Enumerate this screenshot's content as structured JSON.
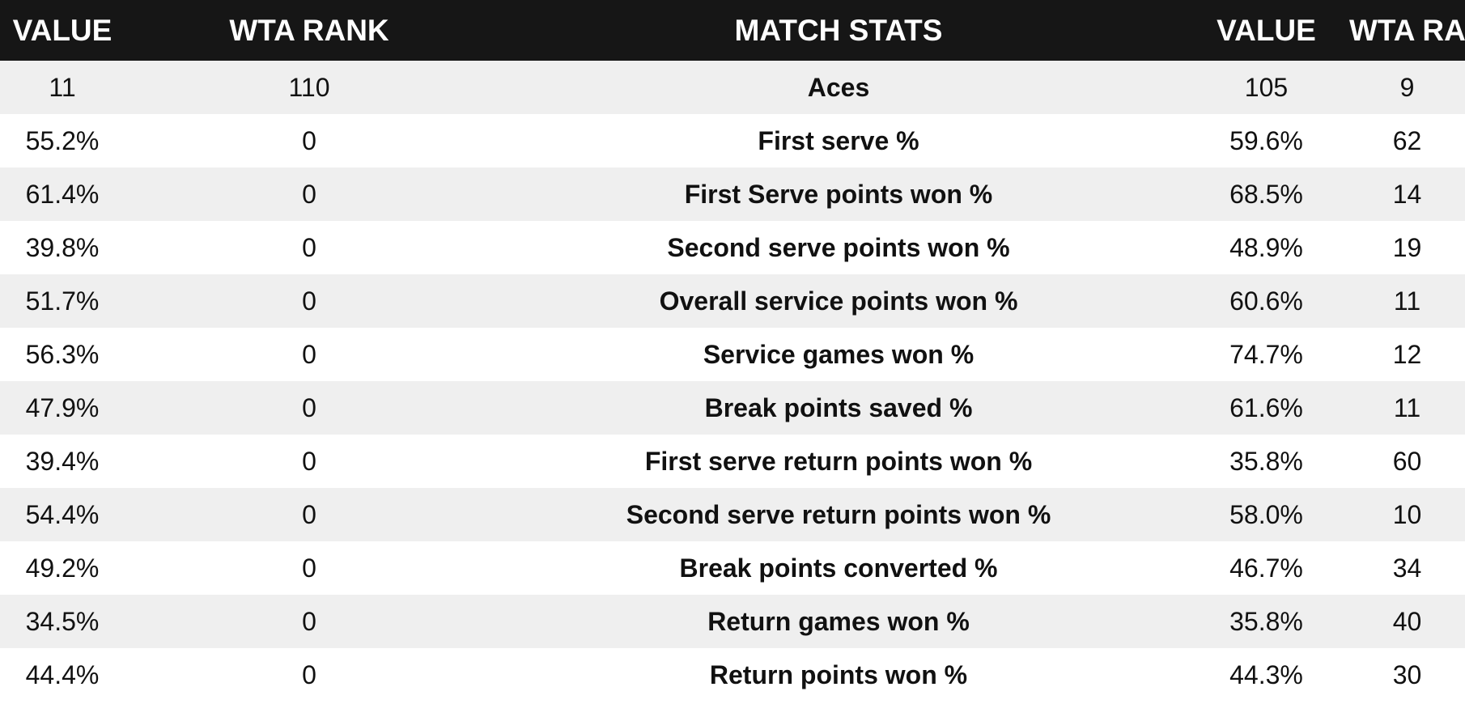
{
  "table": {
    "headers": [
      "VALUE",
      "WTA RANK",
      "MATCH STATS",
      "VALUE",
      "WTA RANK"
    ],
    "rows": [
      [
        "11",
        "110",
        "Aces",
        "105",
        "9"
      ],
      [
        "55.2%",
        "0",
        "First serve %",
        "59.6%",
        "62"
      ],
      [
        "61.4%",
        "0",
        "First Serve points won %",
        "68.5%",
        "14"
      ],
      [
        "39.8%",
        "0",
        "Second serve points won %",
        "48.9%",
        "19"
      ],
      [
        "51.7%",
        "0",
        "Overall service points won %",
        "60.6%",
        "11"
      ],
      [
        "56.3%",
        "0",
        "Service games won %",
        "74.7%",
        "12"
      ],
      [
        "47.9%",
        "0",
        "Break points saved %",
        "61.6%",
        "11"
      ],
      [
        "39.4%",
        "0",
        "First serve return points won %",
        "35.8%",
        "60"
      ],
      [
        "54.4%",
        "0",
        "Second serve return points won %",
        "58.0%",
        "10"
      ],
      [
        "49.2%",
        "0",
        "Break points converted %",
        "46.7%",
        "34"
      ],
      [
        "34.5%",
        "0",
        "Return games won %",
        "35.8%",
        "40"
      ],
      [
        "44.4%",
        "0",
        "Return points won %",
        "44.3%",
        "30"
      ]
    ]
  },
  "colors": {
    "header_bg": "#161616",
    "header_text": "#ffffff",
    "row_alt_bg": "#efefef",
    "row_bg": "#ffffff",
    "text": "#111111"
  }
}
